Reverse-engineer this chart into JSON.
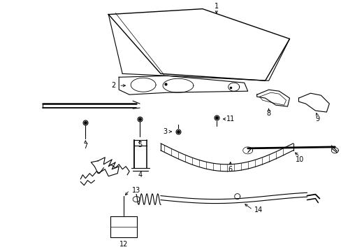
{
  "bg_color": "#ffffff",
  "line_color": "#000000",
  "fig_width": 4.89,
  "fig_height": 3.6,
  "dpi": 100,
  "font_size": 7,
  "lw": 0.8
}
